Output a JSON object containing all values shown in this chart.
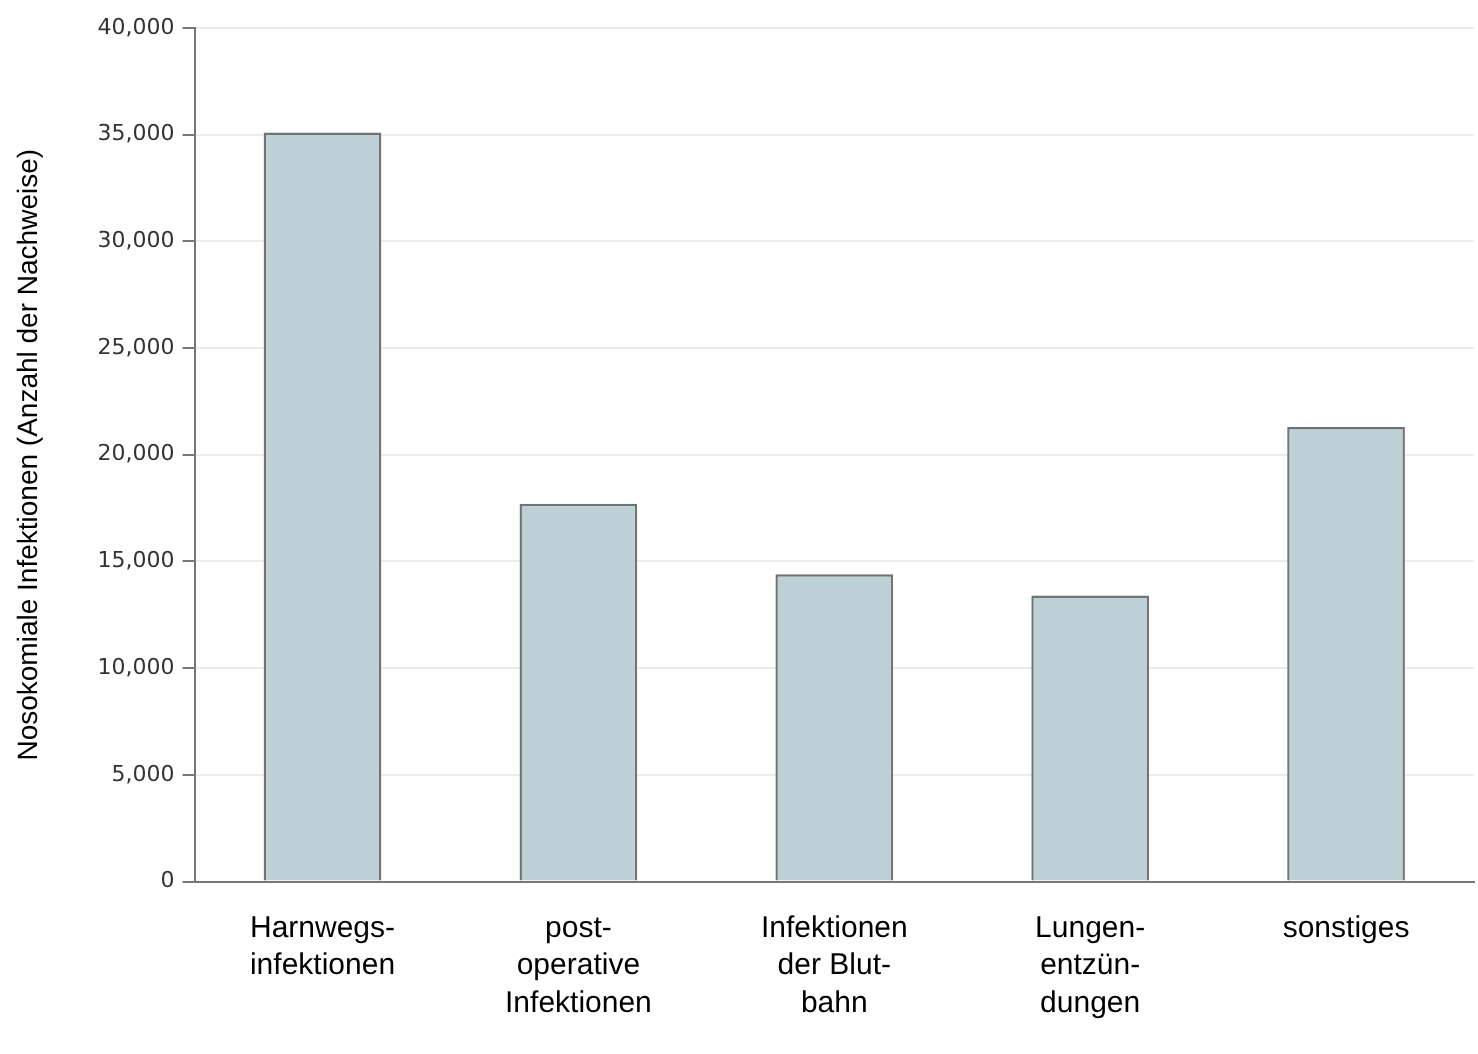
{
  "chart_data": {
    "type": "bar",
    "ylabel": "Nosokomiale Infektionen (Anzahl der Nachweise)",
    "categories": [
      "Harnwegs-\ninfektionen",
      "post-\noperative\nInfektionen",
      "Infektionen\nder Blut-\nbahn",
      "Lungen-\nentzün-\ndungen",
      "sonstiges"
    ],
    "values": [
      35100,
      17700,
      14400,
      13400,
      21300
    ],
    "color": "#bdd0d5",
    "ylim": [
      0,
      40000
    ],
    "yticks": [
      {
        "value": 0,
        "label": "0"
      },
      {
        "value": 5000,
        "label": "5,000"
      },
      {
        "value": 10000,
        "label": "10,000"
      },
      {
        "value": 15000,
        "label": "15,000"
      },
      {
        "value": 20000,
        "label": "20,000"
      },
      {
        "value": 25000,
        "label": "25,000"
      },
      {
        "value": 30000,
        "label": "30,000"
      },
      {
        "value": 35000,
        "label": "35,000"
      },
      {
        "value": 40000,
        "label": "40,000"
      }
    ],
    "grid": "y",
    "legend": false
  }
}
